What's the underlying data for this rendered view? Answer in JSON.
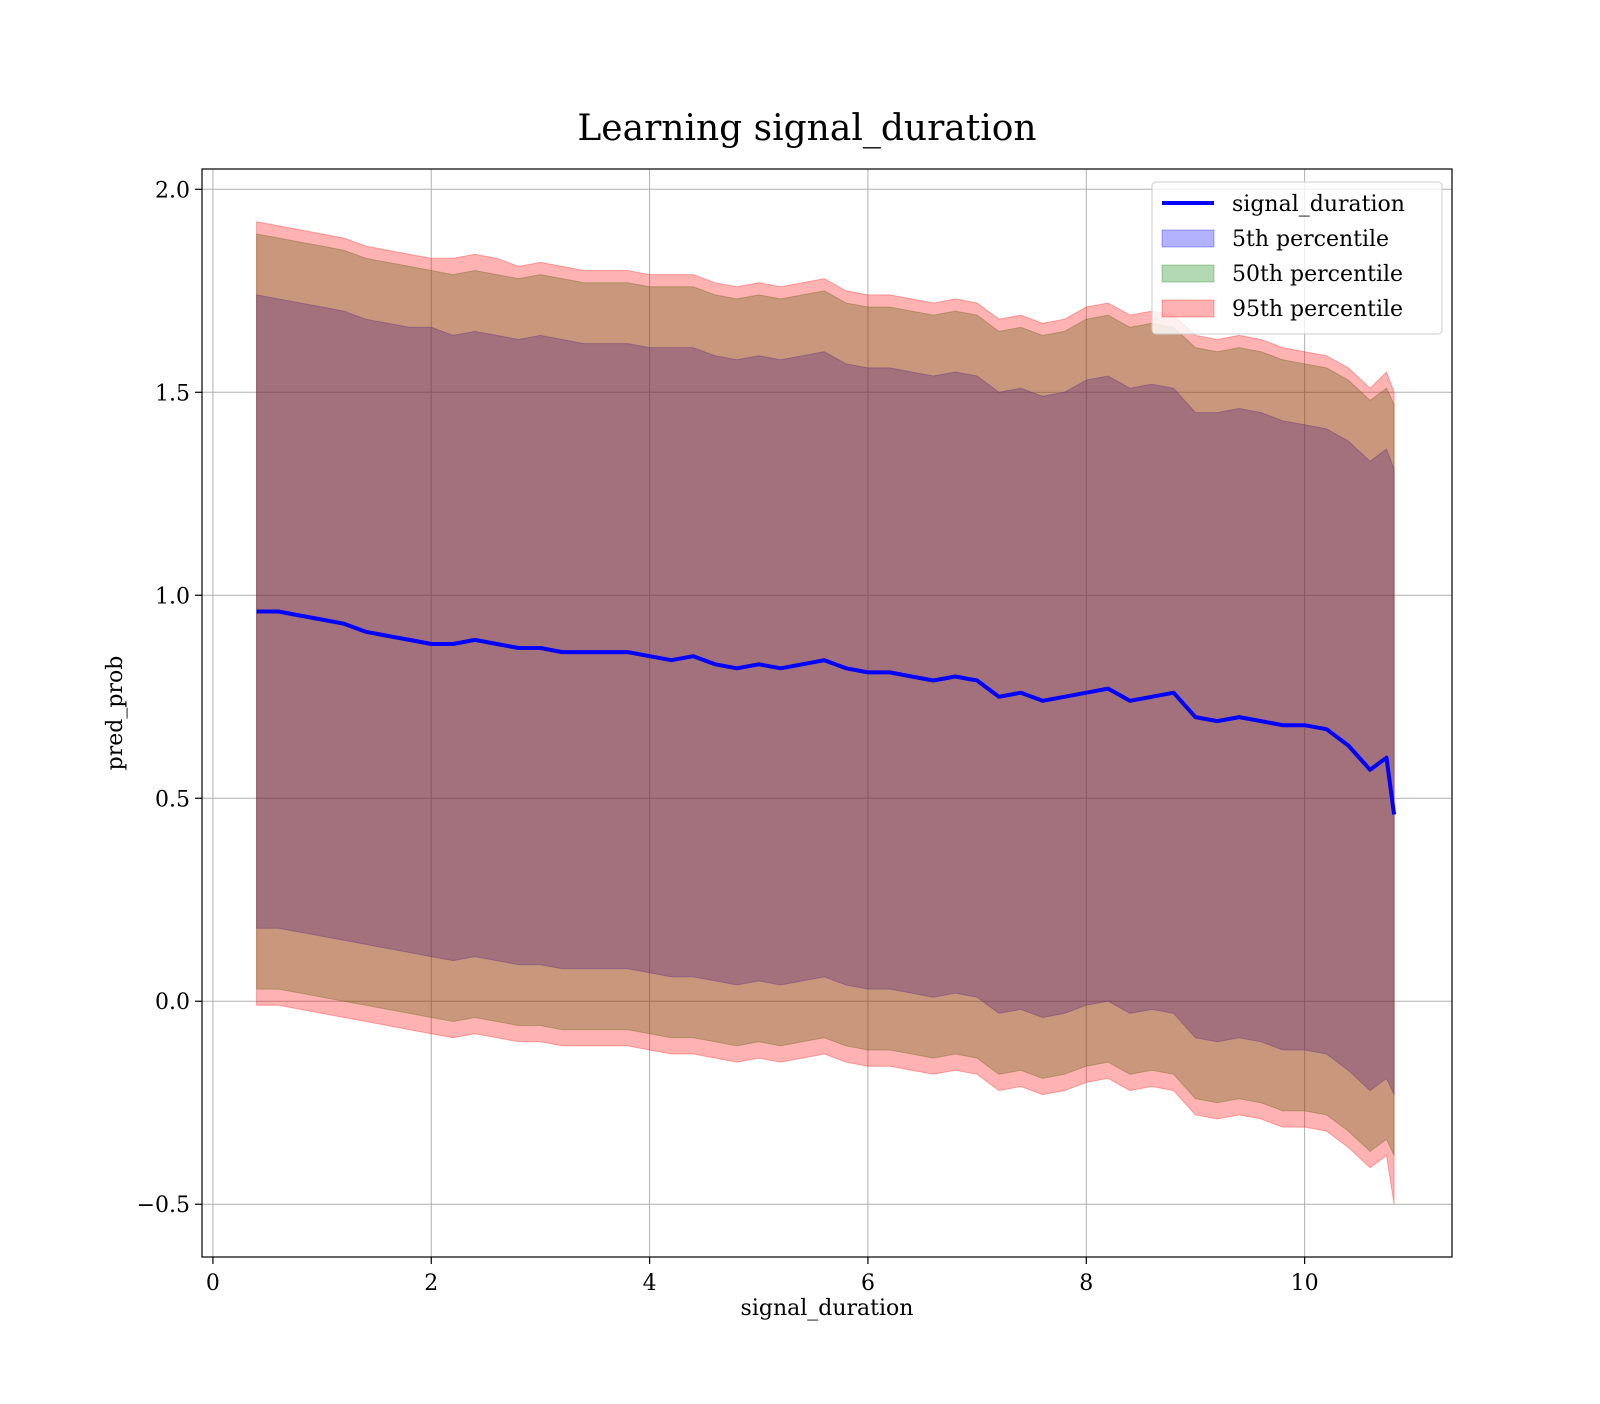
{
  "chart_data": {
    "type": "area",
    "title": "Learning signal_duration",
    "xlabel": "signal_duration",
    "ylabel": "pred_prob",
    "xlim": [
      -0.1,
      11.35
    ],
    "ylim": [
      -0.63,
      2.05
    ],
    "xticks": [
      0,
      2,
      4,
      6,
      8,
      10
    ],
    "yticks": [
      -0.5,
      0.0,
      0.5,
      1.0,
      1.5,
      2.0
    ],
    "xtick_labels": [
      "0",
      "2",
      "4",
      "6",
      "8",
      "10"
    ],
    "ytick_labels": [
      "−0.5",
      "0.0",
      "0.5",
      "1.0",
      "1.5",
      "2.0"
    ],
    "grid": true,
    "legend_position": "top-right",
    "x": [
      0.4,
      0.6,
      0.8,
      1.0,
      1.2,
      1.4,
      1.6,
      1.8,
      2.0,
      2.2,
      2.4,
      2.6,
      2.8,
      3.0,
      3.2,
      3.4,
      3.6,
      3.8,
      4.0,
      4.2,
      4.4,
      4.6,
      4.8,
      5.0,
      5.2,
      5.4,
      5.6,
      5.8,
      6.0,
      6.2,
      6.4,
      6.6,
      6.8,
      7.0,
      7.2,
      7.4,
      7.6,
      7.8,
      8.0,
      8.2,
      8.4,
      8.6,
      8.8,
      9.0,
      9.2,
      9.4,
      9.6,
      9.8,
      10.0,
      10.2,
      10.4,
      10.6,
      10.75,
      10.82
    ],
    "series": [
      {
        "name": "signal_duration",
        "kind": "line",
        "color": "#0000ff",
        "values": [
          0.96,
          0.96,
          0.95,
          0.94,
          0.93,
          0.91,
          0.9,
          0.89,
          0.88,
          0.88,
          0.89,
          0.88,
          0.87,
          0.87,
          0.86,
          0.86,
          0.86,
          0.86,
          0.85,
          0.84,
          0.85,
          0.83,
          0.82,
          0.83,
          0.82,
          0.83,
          0.84,
          0.82,
          0.81,
          0.81,
          0.8,
          0.79,
          0.8,
          0.79,
          0.75,
          0.76,
          0.74,
          0.75,
          0.76,
          0.77,
          0.74,
          0.75,
          0.76,
          0.7,
          0.69,
          0.7,
          0.69,
          0.68,
          0.68,
          0.67,
          0.63,
          0.57,
          0.6,
          0.46
        ]
      },
      {
        "name": "5th percentile",
        "kind": "band",
        "color": "#0000ff",
        "upper": [
          1.74,
          1.73,
          1.72,
          1.71,
          1.7,
          1.68,
          1.67,
          1.66,
          1.66,
          1.64,
          1.65,
          1.64,
          1.63,
          1.64,
          1.63,
          1.62,
          1.62,
          1.62,
          1.61,
          1.61,
          1.61,
          1.59,
          1.58,
          1.59,
          1.58,
          1.59,
          1.6,
          1.57,
          1.56,
          1.56,
          1.55,
          1.54,
          1.55,
          1.54,
          1.5,
          1.51,
          1.49,
          1.5,
          1.53,
          1.54,
          1.51,
          1.52,
          1.51,
          1.45,
          1.45,
          1.46,
          1.45,
          1.43,
          1.42,
          1.41,
          1.38,
          1.33,
          1.36,
          1.31
        ],
        "lower": [
          0.18,
          0.18,
          0.17,
          0.16,
          0.15,
          0.14,
          0.13,
          0.12,
          0.11,
          0.1,
          0.11,
          0.1,
          0.09,
          0.09,
          0.08,
          0.08,
          0.08,
          0.08,
          0.07,
          0.06,
          0.06,
          0.05,
          0.04,
          0.05,
          0.04,
          0.05,
          0.06,
          0.04,
          0.03,
          0.03,
          0.02,
          0.01,
          0.02,
          0.01,
          -0.03,
          -0.02,
          -0.04,
          -0.03,
          -0.01,
          0.0,
          -0.03,
          -0.02,
          -0.03,
          -0.09,
          -0.1,
          -0.09,
          -0.1,
          -0.12,
          -0.12,
          -0.13,
          -0.17,
          -0.22,
          -0.19,
          -0.23
        ]
      },
      {
        "name": "50th percentile",
        "kind": "band",
        "color": "#008000",
        "upper": [
          1.89,
          1.88,
          1.87,
          1.86,
          1.85,
          1.83,
          1.82,
          1.81,
          1.8,
          1.79,
          1.8,
          1.79,
          1.78,
          1.79,
          1.78,
          1.77,
          1.77,
          1.77,
          1.76,
          1.76,
          1.76,
          1.74,
          1.73,
          1.74,
          1.73,
          1.74,
          1.75,
          1.72,
          1.71,
          1.71,
          1.7,
          1.69,
          1.7,
          1.69,
          1.65,
          1.66,
          1.64,
          1.65,
          1.68,
          1.69,
          1.66,
          1.67,
          1.66,
          1.61,
          1.6,
          1.61,
          1.6,
          1.58,
          1.57,
          1.56,
          1.53,
          1.48,
          1.51,
          1.47
        ],
        "lower": [
          0.03,
          0.03,
          0.02,
          0.01,
          0.0,
          -0.01,
          -0.02,
          -0.03,
          -0.04,
          -0.05,
          -0.04,
          -0.05,
          -0.06,
          -0.06,
          -0.07,
          -0.07,
          -0.07,
          -0.07,
          -0.08,
          -0.09,
          -0.09,
          -0.1,
          -0.11,
          -0.1,
          -0.11,
          -0.1,
          -0.09,
          -0.11,
          -0.12,
          -0.12,
          -0.13,
          -0.14,
          -0.13,
          -0.14,
          -0.18,
          -0.17,
          -0.19,
          -0.18,
          -0.16,
          -0.15,
          -0.18,
          -0.17,
          -0.18,
          -0.24,
          -0.25,
          -0.24,
          -0.25,
          -0.27,
          -0.27,
          -0.28,
          -0.32,
          -0.37,
          -0.34,
          -0.38
        ]
      },
      {
        "name": "95th percentile",
        "kind": "band",
        "color": "#ff0000",
        "upper": [
          1.92,
          1.91,
          1.9,
          1.89,
          1.88,
          1.86,
          1.85,
          1.84,
          1.83,
          1.83,
          1.84,
          1.83,
          1.81,
          1.82,
          1.81,
          1.8,
          1.8,
          1.8,
          1.79,
          1.79,
          1.79,
          1.77,
          1.76,
          1.77,
          1.76,
          1.77,
          1.78,
          1.75,
          1.74,
          1.74,
          1.73,
          1.72,
          1.73,
          1.72,
          1.68,
          1.69,
          1.67,
          1.68,
          1.71,
          1.72,
          1.69,
          1.7,
          1.69,
          1.64,
          1.63,
          1.64,
          1.63,
          1.61,
          1.6,
          1.59,
          1.56,
          1.51,
          1.55,
          1.5
        ],
        "lower": [
          -0.01,
          -0.01,
          -0.02,
          -0.03,
          -0.04,
          -0.05,
          -0.06,
          -0.07,
          -0.08,
          -0.09,
          -0.08,
          -0.09,
          -0.1,
          -0.1,
          -0.11,
          -0.11,
          -0.11,
          -0.11,
          -0.12,
          -0.13,
          -0.13,
          -0.14,
          -0.15,
          -0.14,
          -0.15,
          -0.14,
          -0.13,
          -0.15,
          -0.16,
          -0.16,
          -0.17,
          -0.18,
          -0.17,
          -0.18,
          -0.22,
          -0.21,
          -0.23,
          -0.22,
          -0.2,
          -0.19,
          -0.22,
          -0.21,
          -0.22,
          -0.28,
          -0.29,
          -0.28,
          -0.29,
          -0.31,
          -0.31,
          -0.32,
          -0.36,
          -0.41,
          -0.38,
          -0.5
        ]
      }
    ]
  }
}
